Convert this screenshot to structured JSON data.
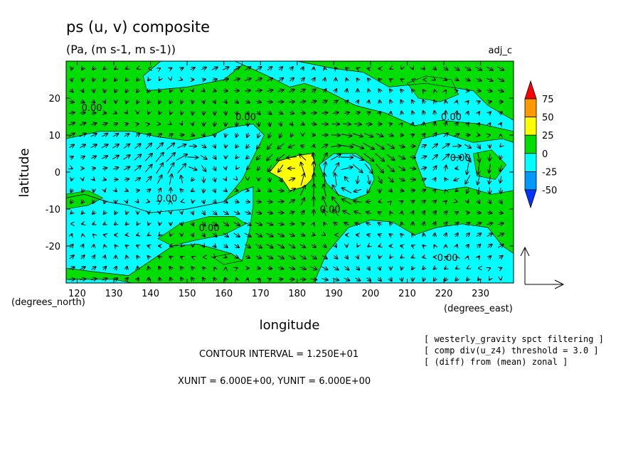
{
  "chart_data": {
    "type": "heatmap",
    "title": "ps (u, v) composite",
    "subtitle": "(Pa, (m s-1, m s-1))",
    "experiment_label": "adj_c",
    "xlabel": "longitude",
    "ylabel": "latitude",
    "x_unit_label": "(degrees_east)",
    "y_unit_label": "(degrees_north)",
    "xlim": [
      117,
      239
    ],
    "ylim": [
      -30,
      30
    ],
    "x_ticks": [
      "120",
      "130",
      "140",
      "150",
      "160",
      "170",
      "180",
      "190",
      "200",
      "210",
      "220",
      "230"
    ],
    "y_ticks": [
      "20",
      "10",
      "0",
      "-10",
      "-20"
    ],
    "colorbar": {
      "levels": [
        "75",
        "50",
        "25",
        "0",
        "-25",
        "-50"
      ],
      "colors": [
        "#ff0000",
        "#ff9900",
        "#ffff00",
        "#00dd00",
        "#00ffff",
        "#0099ff",
        "#0033ff"
      ]
    },
    "contour_labels": [
      {
        "text": "0.00",
        "lon": 124,
        "lat": 16.5
      },
      {
        "text": "0.00",
        "lon": 166,
        "lat": 14
      },
      {
        "text": "0.00",
        "lon": 222,
        "lat": 14
      },
      {
        "text": "0.00",
        "lon": 144.5,
        "lat": -8
      },
      {
        "text": "0.00",
        "lon": 156,
        "lat": -16
      },
      {
        "text": "0.00",
        "lon": 189,
        "lat": -11
      },
      {
        "text": "0.00",
        "lon": 221,
        "lat": -24
      },
      {
        "text": "0.00",
        "lon": 224.5,
        "lat": 3
      }
    ],
    "features": [
      {
        "value_range": "25 to 50",
        "description": "positive ps maximum",
        "lon_range": [
          173,
          185
        ],
        "lat_range": [
          -5,
          5
        ]
      },
      {
        "value_range": "-25 to 0",
        "description": "negative ps region",
        "lon_range": [
          118,
          168
        ],
        "lat_range": [
          -25,
          12
        ]
      },
      {
        "value_range": "-25 to 0",
        "description": "negative ps region",
        "lon_range": [
          186,
          202
        ],
        "lat_range": [
          -7,
          5
        ]
      },
      {
        "value_range": "-25 to 0",
        "description": "negative ps region",
        "lon_range": [
          213,
          239
        ],
        "lat_range": [
          -7,
          10
        ]
      },
      {
        "value_range": "-25 to 0",
        "description": "negative ps region",
        "lon_range": [
          185,
          239
        ],
        "lat_range": [
          -28,
          -14
        ]
      }
    ],
    "vectors": "wind (u, v) arrows on a 3-degree grid",
    "grid": false
  },
  "annotations": {
    "contour_interval": "CONTOUR INTERVAL = 1.250E+01",
    "units": "XUNIT = 6.000E+00, YUNIT = 6.000E+00",
    "filter_notes": [
      "[ westerly_gravity spct filtering ]",
      "[ comp div(u_z4) threshold = 3.0 ]",
      "[ (diff) from (mean) zonal ]"
    ]
  }
}
